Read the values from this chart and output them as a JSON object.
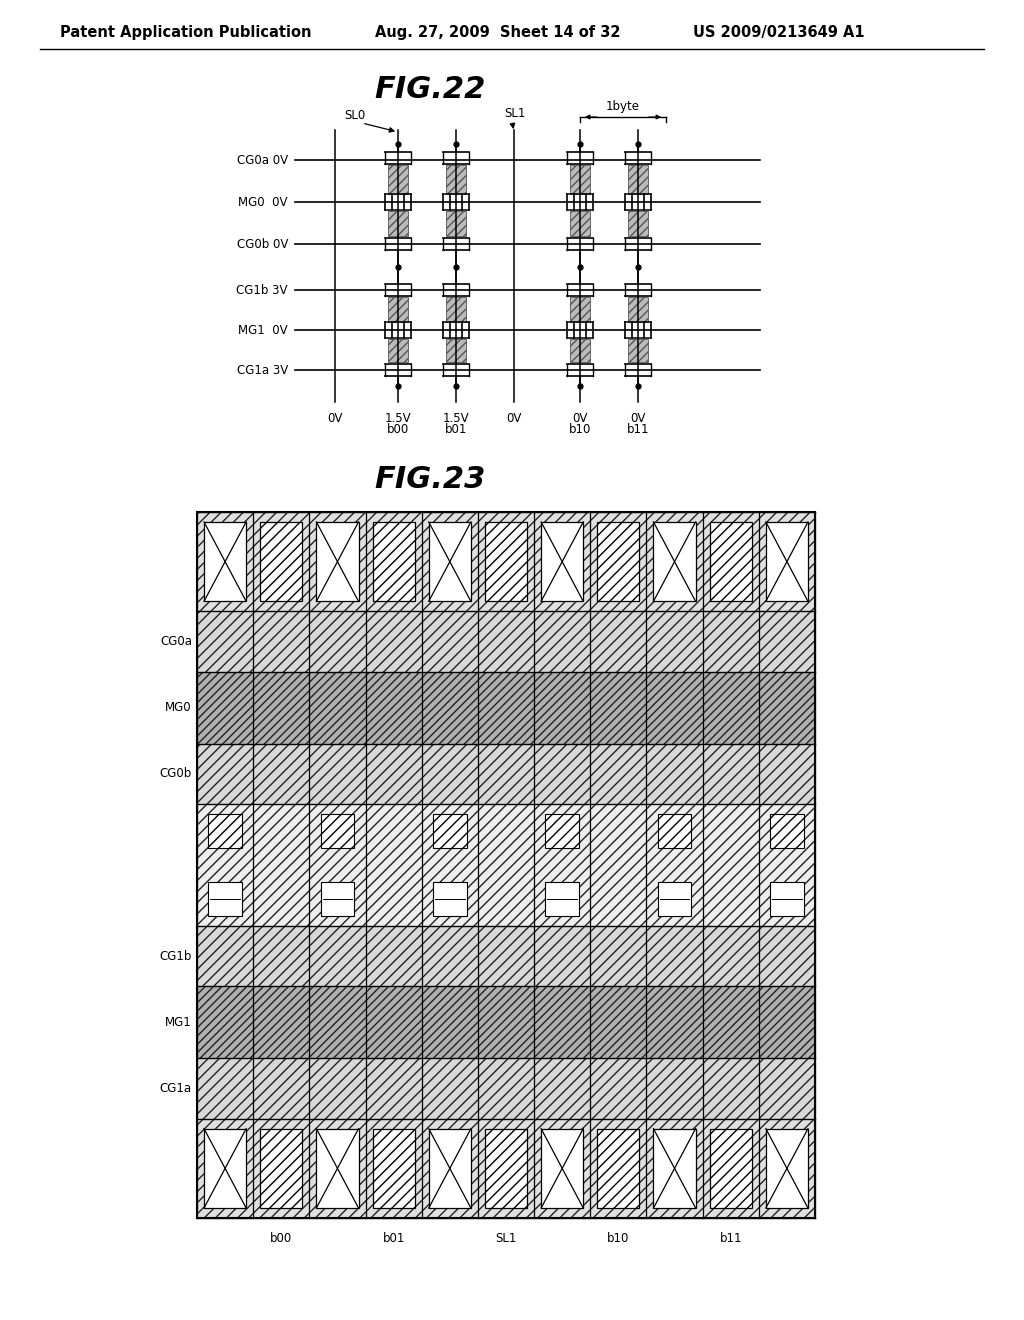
{
  "header_left": "Patent Application Publication",
  "header_mid": "Aug. 27, 2009  Sheet 14 of 32",
  "header_right": "US 2009/0213649 A1",
  "fig22_title": "FIG.22",
  "fig23_title": "FIG.23",
  "fig22_row_labels": [
    "CG0a 0V",
    "MG0  0V",
    "CG0b 0V",
    "CG1b 3V",
    "MG1  0V",
    "CG1a 3V"
  ],
  "fig22_col_bottom": [
    "0V",
    "1.5V",
    "1.5V",
    "0V",
    "0V",
    "0V"
  ],
  "fig22_col_bottom2": [
    "",
    "b00",
    "b01",
    "",
    "b10",
    "b11"
  ],
  "fig23_row_labels": [
    "CG0a",
    "MG0",
    "CG0b",
    "CG1b",
    "MG1",
    "CG1a"
  ],
  "fig23_col_labels": [
    "b00",
    "b01",
    "SL1",
    "b10",
    "b11"
  ],
  "bg_color": "#ffffff",
  "line_color": "#000000"
}
